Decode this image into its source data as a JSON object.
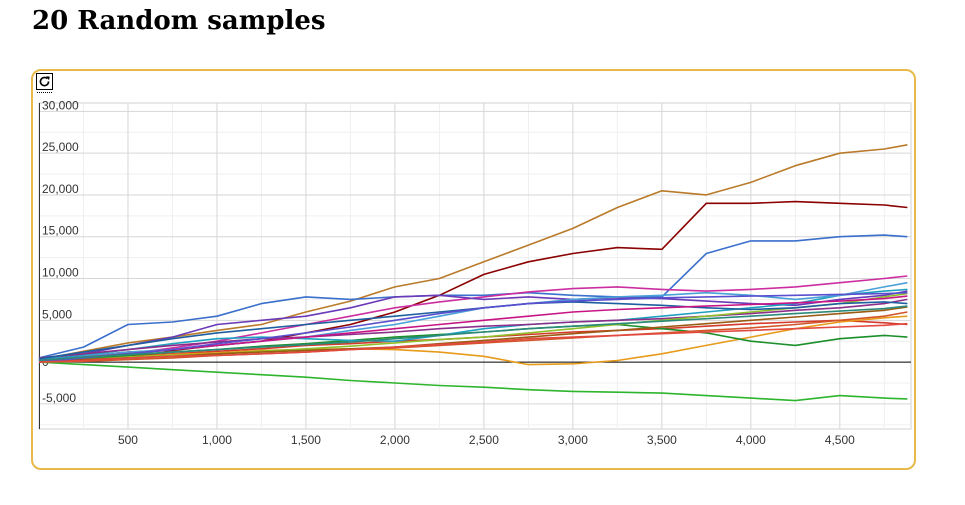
{
  "page": {
    "title": "20 Random samples"
  },
  "chart_data": {
    "type": "line",
    "title": "",
    "xlabel": "",
    "ylabel": "",
    "xlim": [
      0,
      4900
    ],
    "ylim": [
      -8000,
      31000
    ],
    "x_ticks": [
      "500",
      "1,000",
      "1,500",
      "2,000",
      "2,500",
      "3,000",
      "3,500",
      "4,000",
      "4,500"
    ],
    "x_tick_values": [
      500,
      1000,
      1500,
      2000,
      2500,
      3000,
      3500,
      4000,
      4500
    ],
    "y_ticks": [
      "30,000",
      "25,000",
      "20,000",
      "15,000",
      "10,000",
      "5,000",
      "0",
      "-5,000"
    ],
    "y_tick_values": [
      30000,
      25000,
      20000,
      15000,
      10000,
      5000,
      0,
      -5000
    ],
    "grid": true,
    "legend": "none",
    "series": [
      {
        "color": "#b97a2a",
        "x": [
          0,
          250,
          500,
          750,
          1000,
          1250,
          1500,
          1750,
          2000,
          2250,
          2500,
          2750,
          3000,
          3250,
          3500,
          3750,
          4000,
          4250,
          4500,
          4750,
          4880
        ],
        "y": [
          300,
          1300,
          2300,
          3000,
          3800,
          4500,
          6000,
          7300,
          9000,
          10000,
          12000,
          14000,
          16000,
          18500,
          20500,
          20000,
          21500,
          23500,
          25000,
          25500,
          26000
        ]
      },
      {
        "color": "#8b0000",
        "x": [
          0,
          250,
          500,
          750,
          1000,
          1250,
          1500,
          1750,
          2000,
          2250,
          2500,
          2750,
          3000,
          3250,
          3500,
          3750,
          4000,
          4250,
          4500,
          4750,
          4880
        ],
        "y": [
          200,
          700,
          1200,
          1400,
          2000,
          2500,
          3500,
          4500,
          6000,
          8000,
          10500,
          12000,
          13000,
          13700,
          13500,
          19000,
          19000,
          19200,
          19000,
          18800,
          18500
        ]
      },
      {
        "color": "#3a6fcc",
        "x": [
          0,
          250,
          500,
          750,
          1000,
          1250,
          1500,
          1750,
          2000,
          2250,
          2500,
          2750,
          3000,
          3250,
          3500,
          3750,
          4000,
          4250,
          4500,
          4750,
          4880
        ],
        "y": [
          500,
          1800,
          4500,
          4800,
          5500,
          7000,
          7800,
          7500,
          7800,
          8000,
          8000,
          8300,
          8000,
          7800,
          7800,
          13000,
          14500,
          14500,
          15000,
          15200,
          15000
        ]
      },
      {
        "color": "#2db52d",
        "x": [
          0,
          250,
          500,
          750,
          1000,
          1250,
          1500,
          1750,
          2000,
          2250,
          2500,
          2750,
          3000,
          3250,
          3500,
          3750,
          4000,
          4250,
          4500,
          4750,
          4880
        ],
        "y": [
          0,
          -300,
          -600,
          -900,
          -1200,
          -1500,
          -1800,
          -2200,
          -2500,
          -2800,
          -3000,
          -3300,
          -3500,
          -3600,
          -3700,
          -4000,
          -4300,
          -4600,
          -4000,
          -4300,
          -4400
        ]
      },
      {
        "color": "#cc2ea0",
        "x": [
          0,
          250,
          500,
          750,
          1000,
          1250,
          1500,
          1750,
          2000,
          2250,
          2500,
          2750,
          3000,
          3250,
          3500,
          3750,
          4000,
          4250,
          4500,
          4750,
          4880
        ],
        "y": [
          200,
          600,
          1000,
          1700,
          2500,
          3500,
          4500,
          5500,
          6500,
          7200,
          7800,
          8400,
          8800,
          9000,
          8700,
          8500,
          8700,
          9000,
          9500,
          10000,
          10300
        ]
      },
      {
        "color": "#6a3ab8",
        "x": [
          0,
          250,
          500,
          750,
          1000,
          1250,
          1500,
          1750,
          2000,
          2250,
          2500,
          2750,
          3000,
          3250,
          3500,
          3750,
          4000,
          4250,
          4500,
          4750,
          4880
        ],
        "y": [
          100,
          1000,
          2000,
          3000,
          4500,
          5000,
          5500,
          6500,
          7800,
          8000,
          7500,
          7800,
          7500,
          7700,
          7600,
          7300,
          7000,
          6800,
          7500,
          8000,
          8500
        ]
      },
      {
        "color": "#d33a2a",
        "x": [
          0,
          250,
          500,
          750,
          1000,
          1250,
          1500,
          1750,
          2000,
          2250,
          2500,
          2750,
          3000,
          3250,
          3500,
          3750,
          4000,
          4250,
          4500,
          4750,
          4880
        ],
        "y": [
          0,
          500,
          700,
          1000,
          1300,
          1600,
          2000,
          2200,
          2500,
          2700,
          3000,
          3300,
          3600,
          3800,
          4000,
          4300,
          4600,
          4800,
          5000,
          4700,
          4500
        ]
      },
      {
        "color": "#e89b1a",
        "x": [
          0,
          250,
          500,
          750,
          1000,
          1250,
          1500,
          1750,
          2000,
          2250,
          2500,
          2750,
          3000,
          3250,
          3500,
          3750,
          4000,
          4250,
          4500,
          4750,
          4880
        ],
        "y": [
          0,
          200,
          600,
          900,
          1100,
          1400,
          1500,
          1600,
          1500,
          1200,
          700,
          -300,
          -200,
          200,
          1000,
          2000,
          3000,
          4000,
          4800,
          5300,
          5500
        ]
      },
      {
        "color": "#1b8f2a",
        "x": [
          0,
          250,
          500,
          750,
          1000,
          1250,
          1500,
          1750,
          2000,
          2250,
          2500,
          2750,
          3000,
          3250,
          3500,
          3750,
          4000,
          4250,
          4500,
          4750,
          4880
        ],
        "y": [
          0,
          400,
          800,
          1200,
          1500,
          1900,
          2200,
          2600,
          3000,
          3300,
          3600,
          4000,
          4300,
          4500,
          4000,
          3500,
          2500,
          2000,
          2800,
          3200,
          3000
        ]
      },
      {
        "color": "#20a0c0",
        "x": [
          0,
          250,
          500,
          750,
          1000,
          1250,
          1500,
          1750,
          2000,
          2250,
          2500,
          2750,
          3000,
          3250,
          3500,
          3750,
          4000,
          4250,
          4500,
          4750,
          4880
        ],
        "y": [
          300,
          800,
          1500,
          2200,
          2800,
          3000,
          2800,
          2600,
          2500,
          3200,
          4000,
          4500,
          4800,
          5000,
          5500,
          6000,
          6500,
          7000,
          8000,
          8500,
          8700
        ]
      },
      {
        "color": "#8a2e8a",
        "x": [
          0,
          250,
          500,
          750,
          1000,
          1250,
          1500,
          1750,
          2000,
          2250,
          2500,
          2750,
          3000,
          3250,
          3500,
          3750,
          4000,
          4250,
          4500,
          4750,
          4880
        ],
        "y": [
          500,
          1000,
          1500,
          2000,
          2400,
          2800,
          3000,
          3300,
          3600,
          4000,
          4300,
          4500,
          4800,
          5000,
          5200,
          5500,
          5800,
          6200,
          6500,
          7000,
          7500
        ]
      },
      {
        "color": "#d3562a",
        "x": [
          0,
          250,
          500,
          750,
          1000,
          1250,
          1500,
          1750,
          2000,
          2250,
          2500,
          2750,
          3000,
          3250,
          3500,
          3750,
          4000,
          4250,
          4500,
          4750,
          4880
        ],
        "y": [
          0,
          100,
          300,
          500,
          800,
          1000,
          1200,
          1500,
          1700,
          2000,
          2300,
          2600,
          2900,
          3200,
          3500,
          3800,
          4100,
          4500,
          5000,
          5500,
          6000
        ]
      },
      {
        "color": "#4aa0d8",
        "x": [
          0,
          250,
          500,
          750,
          1000,
          1250,
          1500,
          1750,
          2000,
          2250,
          2500,
          2750,
          3000,
          3250,
          3500,
          3750,
          4000,
          4250,
          4500,
          4750,
          4880
        ],
        "y": [
          0,
          700,
          1200,
          1500,
          2000,
          2500,
          3000,
          3800,
          4500,
          5500,
          6500,
          7000,
          7500,
          7800,
          8000,
          8300,
          8000,
          7500,
          8000,
          9000,
          9500
        ]
      },
      {
        "color": "#8fbf2a",
        "x": [
          0,
          250,
          500,
          750,
          1000,
          1250,
          1500,
          1750,
          2000,
          2250,
          2500,
          2750,
          3000,
          3250,
          3500,
          3750,
          4000,
          4250,
          4500,
          4750,
          4880
        ],
        "y": [
          0,
          300,
          600,
          800,
          1000,
          1300,
          1600,
          1900,
          2300,
          2700,
          3000,
          3500,
          4000,
          4500,
          5000,
          5500,
          6000,
          6500,
          7000,
          7800,
          8200
        ]
      },
      {
        "color": "#1f5fa0",
        "x": [
          0,
          250,
          500,
          750,
          1000,
          1250,
          1500,
          1750,
          2000,
          2250,
          2500,
          2750,
          3000,
          3250,
          3500,
          3750,
          4000,
          4250,
          4500,
          4750,
          4880
        ],
        "y": [
          400,
          1200,
          2000,
          2800,
          3500,
          4000,
          4500,
          5000,
          5500,
          6000,
          6500,
          7000,
          7200,
          7000,
          6800,
          6500,
          6300,
          6500,
          7000,
          7200,
          7000
        ]
      },
      {
        "color": "#c71585",
        "x": [
          0,
          250,
          500,
          750,
          1000,
          1250,
          1500,
          1750,
          2000,
          2250,
          2500,
          2750,
          3000,
          3250,
          3500,
          3750,
          4000,
          4250,
          4500,
          4750,
          4880
        ],
        "y": [
          200,
          600,
          1000,
          1500,
          2000,
          2500,
          3000,
          3500,
          4000,
          4500,
          5000,
          5500,
          6000,
          6300,
          6500,
          6700,
          6900,
          7100,
          7300,
          7600,
          7900
        ]
      },
      {
        "color": "#9a5b13",
        "x": [
          0,
          250,
          500,
          750,
          1000,
          1250,
          1500,
          1750,
          2000,
          2250,
          2500,
          2750,
          3000,
          3250,
          3500,
          3750,
          4000,
          4250,
          4500,
          4750,
          4880
        ],
        "y": [
          100,
          300,
          500,
          700,
          1000,
          1200,
          1400,
          1600,
          1800,
          2200,
          2600,
          3000,
          3400,
          3800,
          4200,
          4600,
          5000,
          5400,
          5800,
          6200,
          6600
        ]
      },
      {
        "color": "#5a4fcf",
        "x": [
          0,
          250,
          500,
          750,
          1000,
          1250,
          1500,
          1750,
          2000,
          2250,
          2500,
          2750,
          3000,
          3250,
          3500,
          3750,
          4000,
          4250,
          4500,
          4750,
          4880
        ],
        "y": [
          0,
          500,
          1000,
          1500,
          2200,
          2800,
          3500,
          4200,
          5000,
          5800,
          6500,
          7000,
          7300,
          7500,
          7700,
          7800,
          7900,
          8000,
          8100,
          8200,
          8300
        ]
      },
      {
        "color": "#e2493f",
        "x": [
          0,
          250,
          500,
          750,
          1000,
          1250,
          1500,
          1750,
          2000,
          2250,
          2500,
          2750,
          3000,
          3250,
          3500,
          3750,
          4000,
          4250,
          4500,
          4750,
          4880
        ],
        "y": [
          0,
          200,
          500,
          700,
          800,
          1000,
          1200,
          1500,
          1800,
          2100,
          2400,
          2800,
          3000,
          3200,
          3400,
          3600,
          3800,
          4000,
          4200,
          4400,
          4600
        ]
      },
      {
        "color": "#2c8a7a",
        "x": [
          0,
          250,
          500,
          750,
          1000,
          1250,
          1500,
          1750,
          2000,
          2250,
          2500,
          2750,
          3000,
          3250,
          3500,
          3750,
          4000,
          4250,
          4500,
          4750,
          4880
        ],
        "y": [
          200,
          600,
          900,
          1200,
          1500,
          1800,
          2100,
          2400,
          2800,
          3200,
          3600,
          4000,
          4300,
          4600,
          4900,
          5200,
          5500,
          5800,
          6100,
          6400,
          6700
        ]
      }
    ]
  },
  "icons": {
    "refresh": "refresh-icon"
  }
}
